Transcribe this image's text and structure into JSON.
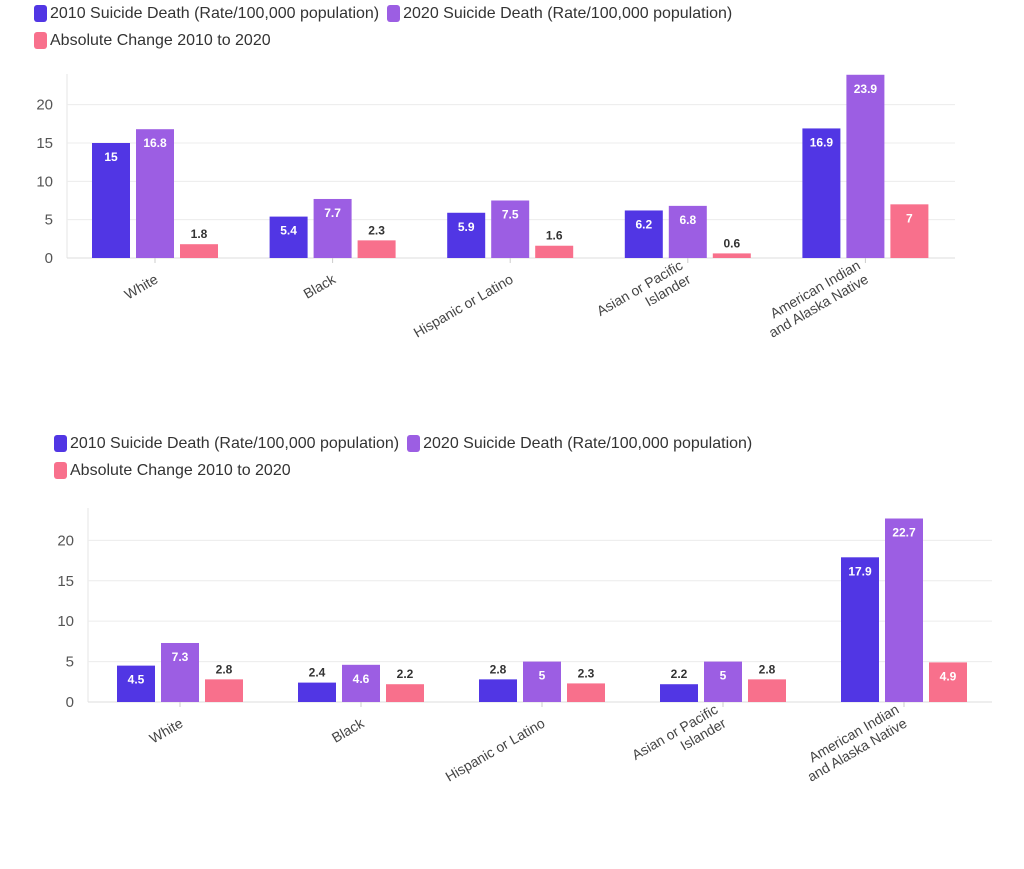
{
  "colors": {
    "s2010": "#5136e4",
    "s2020": "#9c5ee3",
    "change": "#f8708c"
  },
  "chart_data": [
    {
      "type": "bar",
      "legend": [
        "2010 Suicide Death (Rate/100,000 population)",
        "2020 Suicide Death (Rate/100,000 population)",
        "Absolute Change 2010 to 2020"
      ],
      "categories": [
        [
          "White"
        ],
        [
          "Black"
        ],
        [
          "Hispanic or Latino"
        ],
        [
          "Asian or Pacific",
          "Islander"
        ],
        [
          "American Indian",
          "and Alaska Native"
        ]
      ],
      "series": [
        {
          "name": "2010 Suicide Death (Rate/100,000 population)",
          "values": [
            15,
            5.4,
            5.9,
            6.2,
            16.9
          ]
        },
        {
          "name": "2020 Suicide Death (Rate/100,000 population)",
          "values": [
            16.8,
            7.7,
            7.5,
            6.8,
            23.9
          ]
        },
        {
          "name": "Absolute Change 2010 to 2020",
          "values": [
            1.8,
            2.3,
            1.6,
            0.6,
            7
          ]
        }
      ],
      "yticks": [
        "0",
        "5",
        "10",
        "15",
        "20"
      ],
      "ylim": [
        0,
        24
      ],
      "legend_position": "top-left"
    },
    {
      "type": "bar",
      "legend": [
        "2010 Suicide Death (Rate/100,000 population)",
        "2020 Suicide Death (Rate/100,000 population)",
        "Absolute Change 2010 to 2020"
      ],
      "categories": [
        [
          "White"
        ],
        [
          "Black"
        ],
        [
          "Hispanic or Latino"
        ],
        [
          "Asian or Pacific",
          "Islander"
        ],
        [
          "American Indian",
          "and Alaska Native"
        ]
      ],
      "series": [
        {
          "name": "2010 Suicide Death (Rate/100,000 population)",
          "values": [
            4.5,
            2.4,
            2.8,
            2.2,
            17.9
          ]
        },
        {
          "name": "2020 Suicide Death (Rate/100,000 population)",
          "values": [
            7.3,
            4.6,
            5,
            5,
            22.7
          ]
        },
        {
          "name": "Absolute Change 2010 to 2020",
          "values": [
            2.8,
            2.2,
            2.3,
            2.8,
            4.9
          ]
        }
      ],
      "yticks": [
        "0",
        "5",
        "10",
        "15",
        "20"
      ],
      "ylim": [
        0,
        24
      ],
      "legend_position": "top-left"
    }
  ]
}
